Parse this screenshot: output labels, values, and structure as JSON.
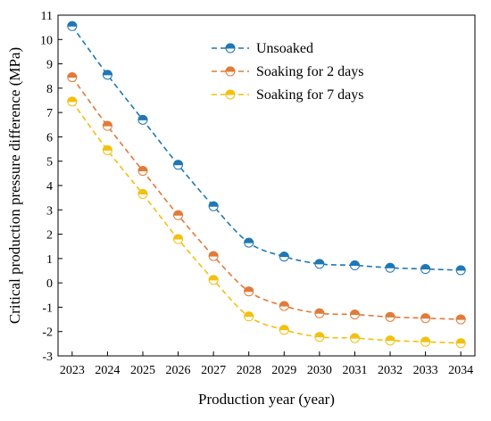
{
  "chart_data": {
    "type": "line",
    "title": "",
    "xlabel": "Production year (year)",
    "ylabel": "Critical production pressure difference (MPa)",
    "x": [
      2023,
      2024,
      2025,
      2026,
      2027,
      2028,
      2029,
      2030,
      2031,
      2032,
      2033,
      2034
    ],
    "xlim": [
      2022.6,
      2034.4
    ],
    "ylim": [
      -3,
      11
    ],
    "yticks": [
      -3,
      -2,
      -1,
      0,
      1,
      2,
      3,
      4,
      5,
      6,
      7,
      8,
      9,
      10,
      11
    ],
    "grid": false,
    "legend": "top-center",
    "series": [
      {
        "name": "Unsoaked",
        "color": "#1f77b4",
        "values": [
          10.55,
          8.55,
          6.7,
          4.85,
          3.15,
          1.65,
          1.08,
          0.78,
          0.72,
          0.62,
          0.57,
          0.52
        ]
      },
      {
        "name": "Soaking for 2 days",
        "color": "#e07b39",
        "values": [
          8.45,
          6.45,
          4.6,
          2.78,
          1.1,
          -0.35,
          -0.95,
          -1.25,
          -1.3,
          -1.4,
          -1.45,
          -1.5
        ]
      },
      {
        "name": "Soaking for 7 days",
        "color": "#f2c00f",
        "values": [
          7.45,
          5.45,
          3.65,
          1.8,
          0.12,
          -1.38,
          -1.93,
          -2.22,
          -2.27,
          -2.37,
          -2.42,
          -2.48
        ]
      }
    ]
  }
}
